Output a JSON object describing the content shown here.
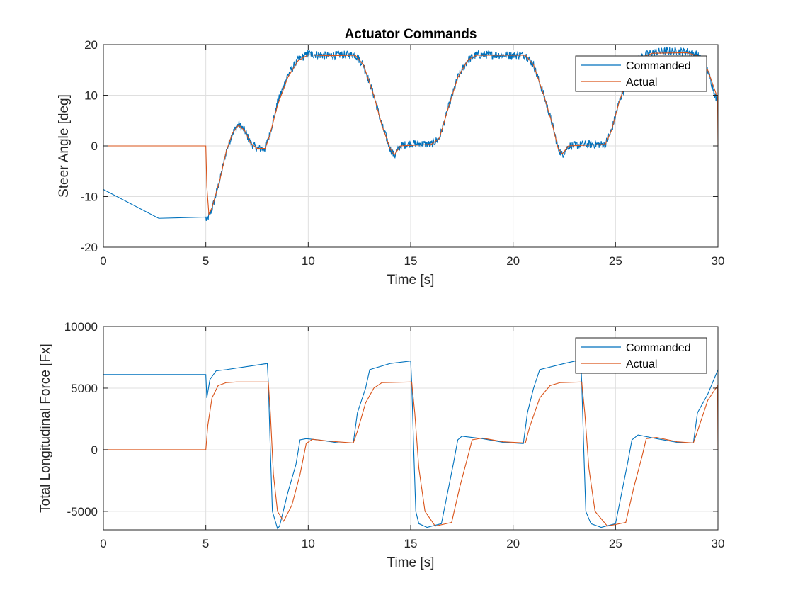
{
  "chart_data": [
    {
      "type": "line",
      "title": "Actuator Commands",
      "xlabel": "Time [s]",
      "ylabel": "Steer Angle [deg]",
      "xlim": [
        0,
        30
      ],
      "ylim": [
        -20,
        20
      ],
      "xticks": [
        0,
        5,
        10,
        15,
        20,
        25,
        30
      ],
      "yticks": [
        -20,
        -10,
        0,
        10,
        20
      ],
      "grid": true,
      "legend_position": "top-right",
      "series": [
        {
          "name": "Commanded",
          "color": "#0072BD",
          "noise": 0.8,
          "points": [
            [
              0,
              -8.6
            ],
            [
              2.7,
              -14.3
            ],
            [
              5.0,
              -14.3
            ],
            [
              5.05,
              -14.8
            ],
            [
              5.3,
              -12.5
            ],
            [
              5.7,
              -6.5
            ],
            [
              6.0,
              -1.0
            ],
            [
              6.3,
              2.5
            ],
            [
              6.6,
              4.3
            ],
            [
              6.9,
              3.0
            ],
            [
              7.2,
              0.5
            ],
            [
              7.5,
              -0.5
            ],
            [
              7.9,
              -0.5
            ],
            [
              8.1,
              2.0
            ],
            [
              8.5,
              8.5
            ],
            [
              9.0,
              14.0
            ],
            [
              9.5,
              17.0
            ],
            [
              10.0,
              18.2
            ],
            [
              10.5,
              18.0
            ],
            [
              11.0,
              17.8
            ],
            [
              11.5,
              18.0
            ],
            [
              12.3,
              18.0
            ],
            [
              12.7,
              16.0
            ],
            [
              13.2,
              10.0
            ],
            [
              13.6,
              4.0
            ],
            [
              14.0,
              -0.5
            ],
            [
              14.2,
              -2.0
            ],
            [
              14.5,
              0.0
            ],
            [
              15.0,
              0.5
            ],
            [
              16.0,
              0.3
            ],
            [
              16.4,
              1.5
            ],
            [
              16.8,
              7.0
            ],
            [
              17.3,
              13.5
            ],
            [
              17.8,
              17.0
            ],
            [
              18.2,
              18.0
            ],
            [
              19.0,
              18.0
            ],
            [
              20.0,
              17.9
            ],
            [
              20.6,
              18.0
            ],
            [
              21.0,
              16.0
            ],
            [
              21.5,
              10.0
            ],
            [
              21.9,
              4.5
            ],
            [
              22.2,
              -0.5
            ],
            [
              22.4,
              -1.8
            ],
            [
              22.7,
              0.0
            ],
            [
              23.5,
              0.3
            ],
            [
              24.5,
              0.3
            ],
            [
              24.8,
              3.0
            ],
            [
              25.2,
              9.0
            ],
            [
              25.7,
              14.5
            ],
            [
              26.2,
              17.5
            ],
            [
              26.8,
              18.5
            ],
            [
              27.5,
              18.7
            ],
            [
              28.5,
              18.6
            ],
            [
              29.0,
              18.0
            ],
            [
              29.5,
              15.0
            ],
            [
              30.0,
              8.0
            ]
          ]
        },
        {
          "name": "Actual",
          "color": "#D95319",
          "noise": 0,
          "points": [
            [
              0,
              0
            ],
            [
              5.0,
              0
            ],
            [
              5.05,
              -8.0
            ],
            [
              5.15,
              -13.5
            ],
            [
              5.3,
              -12.2
            ],
            [
              5.7,
              -6.5
            ],
            [
              6.0,
              -1.0
            ],
            [
              6.3,
              2.5
            ],
            [
              6.6,
              4.1
            ],
            [
              6.9,
              3.0
            ],
            [
              7.2,
              0.5
            ],
            [
              7.5,
              -0.5
            ],
            [
              7.9,
              -0.5
            ],
            [
              8.1,
              1.8
            ],
            [
              8.5,
              8.0
            ],
            [
              9.0,
              13.5
            ],
            [
              9.5,
              16.8
            ],
            [
              10.0,
              18.0
            ],
            [
              11.0,
              17.8
            ],
            [
              12.3,
              17.9
            ],
            [
              12.7,
              16.0
            ],
            [
              13.2,
              10.0
            ],
            [
              13.6,
              4.0
            ],
            [
              14.0,
              -0.5
            ],
            [
              14.2,
              -1.8
            ],
            [
              14.5,
              0.0
            ],
            [
              16.0,
              0.3
            ],
            [
              16.4,
              1.5
            ],
            [
              16.8,
              7.0
            ],
            [
              17.3,
              13.5
            ],
            [
              17.8,
              17.0
            ],
            [
              18.2,
              17.9
            ],
            [
              20.6,
              17.9
            ],
            [
              21.0,
              16.0
            ],
            [
              21.5,
              10.0
            ],
            [
              21.9,
              4.5
            ],
            [
              22.2,
              -0.5
            ],
            [
              22.4,
              -1.6
            ],
            [
              22.7,
              0.0
            ],
            [
              24.5,
              0.3
            ],
            [
              24.8,
              3.0
            ],
            [
              25.2,
              9.0
            ],
            [
              25.7,
              14.5
            ],
            [
              26.2,
              17.4
            ],
            [
              26.8,
              18.3
            ],
            [
              28.5,
              18.4
            ],
            [
              29.0,
              17.8
            ],
            [
              29.5,
              15.0
            ],
            [
              29.98,
              9.5
            ],
            [
              30.0,
              0.0
            ]
          ]
        }
      ]
    },
    {
      "type": "line",
      "title": "",
      "xlabel": "Time [s]",
      "ylabel": "Total Longitudinal Force [Fx]",
      "xlim": [
        0,
        30
      ],
      "ylim": [
        -6500,
        10000
      ],
      "xticks": [
        0,
        5,
        10,
        15,
        20,
        25,
        30
      ],
      "yticks": [
        -5000,
        0,
        5000,
        10000
      ],
      "grid": true,
      "legend_position": "top-right",
      "series": [
        {
          "name": "Commanded",
          "color": "#0072BD",
          "noise": 0,
          "points": [
            [
              0,
              6100
            ],
            [
              5.0,
              6100
            ],
            [
              5.05,
              4200
            ],
            [
              5.2,
              5700
            ],
            [
              5.5,
              6400
            ],
            [
              6.0,
              6500
            ],
            [
              7.0,
              6750
            ],
            [
              8.0,
              7000
            ],
            [
              8.05,
              5500
            ],
            [
              8.15,
              0
            ],
            [
              8.25,
              -5000
            ],
            [
              8.5,
              -6400
            ],
            [
              8.6,
              -6200
            ],
            [
              9.0,
              -3500
            ],
            [
              9.4,
              -1200
            ],
            [
              9.6,
              800
            ],
            [
              9.9,
              900
            ],
            [
              10.5,
              800
            ],
            [
              11.5,
              550
            ],
            [
              12.2,
              550
            ],
            [
              12.4,
              3000
            ],
            [
              12.8,
              5000
            ],
            [
              13.0,
              6500
            ],
            [
              14.0,
              7000
            ],
            [
              15.0,
              7200
            ],
            [
              15.05,
              5500
            ],
            [
              15.15,
              0
            ],
            [
              15.25,
              -5000
            ],
            [
              15.4,
              -6000
            ],
            [
              15.8,
              -6300
            ],
            [
              16.5,
              -6000
            ],
            [
              16.8,
              -3500
            ],
            [
              17.1,
              -1000
            ],
            [
              17.3,
              800
            ],
            [
              17.5,
              1100
            ],
            [
              18.5,
              900
            ],
            [
              19.5,
              600
            ],
            [
              20.5,
              500
            ],
            [
              20.7,
              3000
            ],
            [
              21.0,
              5000
            ],
            [
              21.3,
              6500
            ],
            [
              22.5,
              7000
            ],
            [
              23.3,
              7300
            ],
            [
              23.35,
              5500
            ],
            [
              23.45,
              0
            ],
            [
              23.55,
              -5000
            ],
            [
              23.8,
              -6000
            ],
            [
              24.3,
              -6300
            ],
            [
              25.0,
              -6000
            ],
            [
              25.3,
              -3500
            ],
            [
              25.6,
              -1000
            ],
            [
              25.8,
              800
            ],
            [
              26.1,
              1200
            ],
            [
              27.0,
              900
            ],
            [
              28.0,
              600
            ],
            [
              28.8,
              550
            ],
            [
              29.0,
              3000
            ],
            [
              29.5,
              4500
            ],
            [
              30.0,
              6500
            ]
          ]
        },
        {
          "name": "Actual",
          "color": "#D95319",
          "noise": 0,
          "points": [
            [
              0,
              0
            ],
            [
              5.0,
              0
            ],
            [
              5.1,
              2000
            ],
            [
              5.3,
              4200
            ],
            [
              5.6,
              5200
            ],
            [
              6.0,
              5450
            ],
            [
              6.5,
              5500
            ],
            [
              8.05,
              5500
            ],
            [
              8.15,
              3000
            ],
            [
              8.3,
              -2000
            ],
            [
              8.5,
              -5000
            ],
            [
              8.8,
              -5800
            ],
            [
              9.2,
              -4500
            ],
            [
              9.6,
              -2000
            ],
            [
              9.9,
              500
            ],
            [
              10.2,
              850
            ],
            [
              11.0,
              700
            ],
            [
              12.2,
              550
            ],
            [
              12.4,
              1500
            ],
            [
              12.8,
              3800
            ],
            [
              13.2,
              5000
            ],
            [
              13.6,
              5450
            ],
            [
              15.05,
              5500
            ],
            [
              15.2,
              3000
            ],
            [
              15.4,
              -1500
            ],
            [
              15.7,
              -5000
            ],
            [
              16.2,
              -6200
            ],
            [
              17.0,
              -5900
            ],
            [
              17.4,
              -3000
            ],
            [
              17.8,
              -500
            ],
            [
              18.0,
              800
            ],
            [
              18.5,
              950
            ],
            [
              19.5,
              650
            ],
            [
              20.6,
              550
            ],
            [
              20.8,
              1800
            ],
            [
              21.3,
              4200
            ],
            [
              21.8,
              5200
            ],
            [
              22.3,
              5450
            ],
            [
              23.35,
              5500
            ],
            [
              23.5,
              3000
            ],
            [
              23.7,
              -1500
            ],
            [
              24.0,
              -5000
            ],
            [
              24.6,
              -6200
            ],
            [
              25.5,
              -5900
            ],
            [
              25.9,
              -3000
            ],
            [
              26.3,
              -500
            ],
            [
              26.5,
              900
            ],
            [
              27.0,
              1000
            ],
            [
              28.0,
              650
            ],
            [
              28.8,
              550
            ],
            [
              29.0,
              1500
            ],
            [
              29.5,
              4000
            ],
            [
              29.98,
              5200
            ],
            [
              30.0,
              0
            ]
          ]
        }
      ]
    }
  ]
}
